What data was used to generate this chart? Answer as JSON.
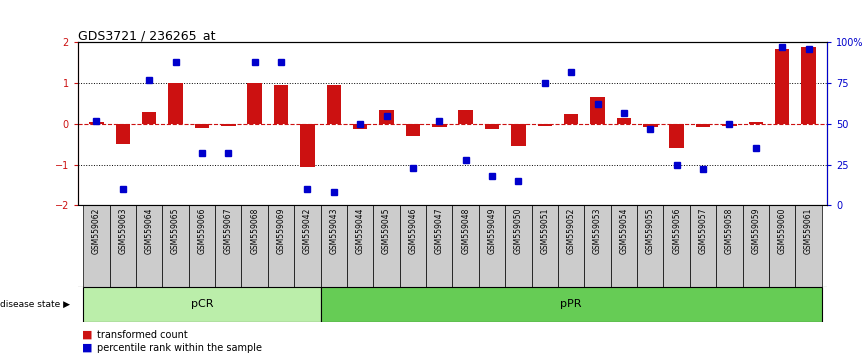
{
  "title": "GDS3721 / 236265_at",
  "samples": [
    "GSM559062",
    "GSM559063",
    "GSM559064",
    "GSM559065",
    "GSM559066",
    "GSM559067",
    "GSM559068",
    "GSM559069",
    "GSM559042",
    "GSM559043",
    "GSM559044",
    "GSM559045",
    "GSM559046",
    "GSM559047",
    "GSM559048",
    "GSM559049",
    "GSM559050",
    "GSM559051",
    "GSM559052",
    "GSM559053",
    "GSM559054",
    "GSM559055",
    "GSM559056",
    "GSM559057",
    "GSM559058",
    "GSM559059",
    "GSM559060",
    "GSM559061"
  ],
  "bar_values": [
    0.05,
    -0.5,
    0.3,
    1.0,
    -0.1,
    -0.05,
    1.0,
    0.95,
    -1.05,
    0.95,
    -0.12,
    0.35,
    -0.3,
    -0.08,
    0.35,
    -0.12,
    -0.55,
    -0.05,
    0.25,
    0.65,
    0.15,
    -0.08,
    -0.6,
    -0.08,
    -0.05,
    0.05,
    1.85,
    1.9
  ],
  "dot_values": [
    52,
    10,
    77,
    88,
    32,
    32,
    88,
    88,
    10,
    8,
    50,
    55,
    23,
    52,
    28,
    18,
    15,
    75,
    82,
    62,
    57,
    47,
    25,
    22,
    50,
    35,
    97,
    96
  ],
  "pCR_count": 9,
  "pPR_count": 19,
  "ylim": [
    -2,
    2
  ],
  "y2lim": [
    0,
    100
  ],
  "yticks": [
    -2,
    -1,
    0,
    1,
    2
  ],
  "y2ticks": [
    0,
    25,
    50,
    75,
    100
  ],
  "bar_color": "#cc1111",
  "dot_color": "#0000cc",
  "pCR_color": "#bbeeaa",
  "pPR_color": "#66cc55",
  "label_bg_color": "#cccccc",
  "legend_red": "transformed count",
  "legend_blue": "percentile rank within the sample",
  "disease_state_label": "disease state"
}
